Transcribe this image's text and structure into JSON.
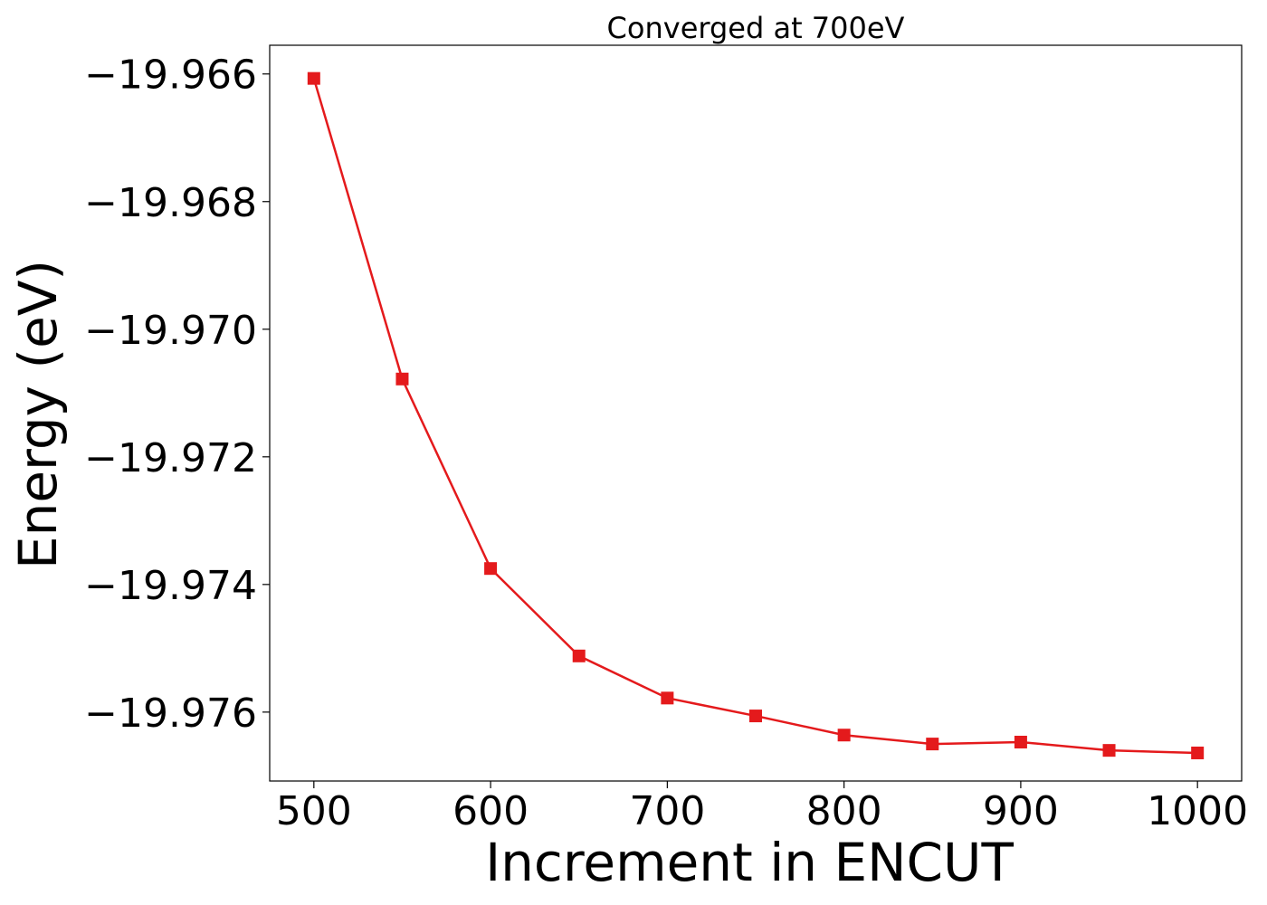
{
  "chart_data": {
    "type": "line",
    "title": "Converged at 700eV",
    "xlabel": "Increment in ENCUT",
    "ylabel": "Energy (eV)",
    "x": [
      500,
      550,
      600,
      650,
      700,
      750,
      800,
      850,
      900,
      950,
      1000
    ],
    "series": [
      {
        "values": [
          -19.96607,
          -19.97078,
          -19.97375,
          -19.97512,
          -19.97578,
          -19.97606,
          -19.97636,
          -19.9765,
          -19.97647,
          -19.9766,
          -19.97664
        ],
        "color": "#e41a1c",
        "marker": "square"
      }
    ],
    "xticks": [
      500,
      600,
      700,
      800,
      900,
      1000
    ],
    "xtick_labels": [
      "500",
      "600",
      "700",
      "800",
      "900",
      "1000"
    ],
    "yticks": [
      -19.966,
      -19.968,
      -19.97,
      -19.972,
      -19.974,
      -19.976
    ],
    "ytick_labels": [
      "−19.966",
      "−19.968",
      "−19.970",
      "−19.972",
      "−19.974",
      "−19.976"
    ],
    "xlim": [
      475,
      1025
    ],
    "ylim": [
      -19.97708,
      -19.96555
    ],
    "grid": false
  }
}
